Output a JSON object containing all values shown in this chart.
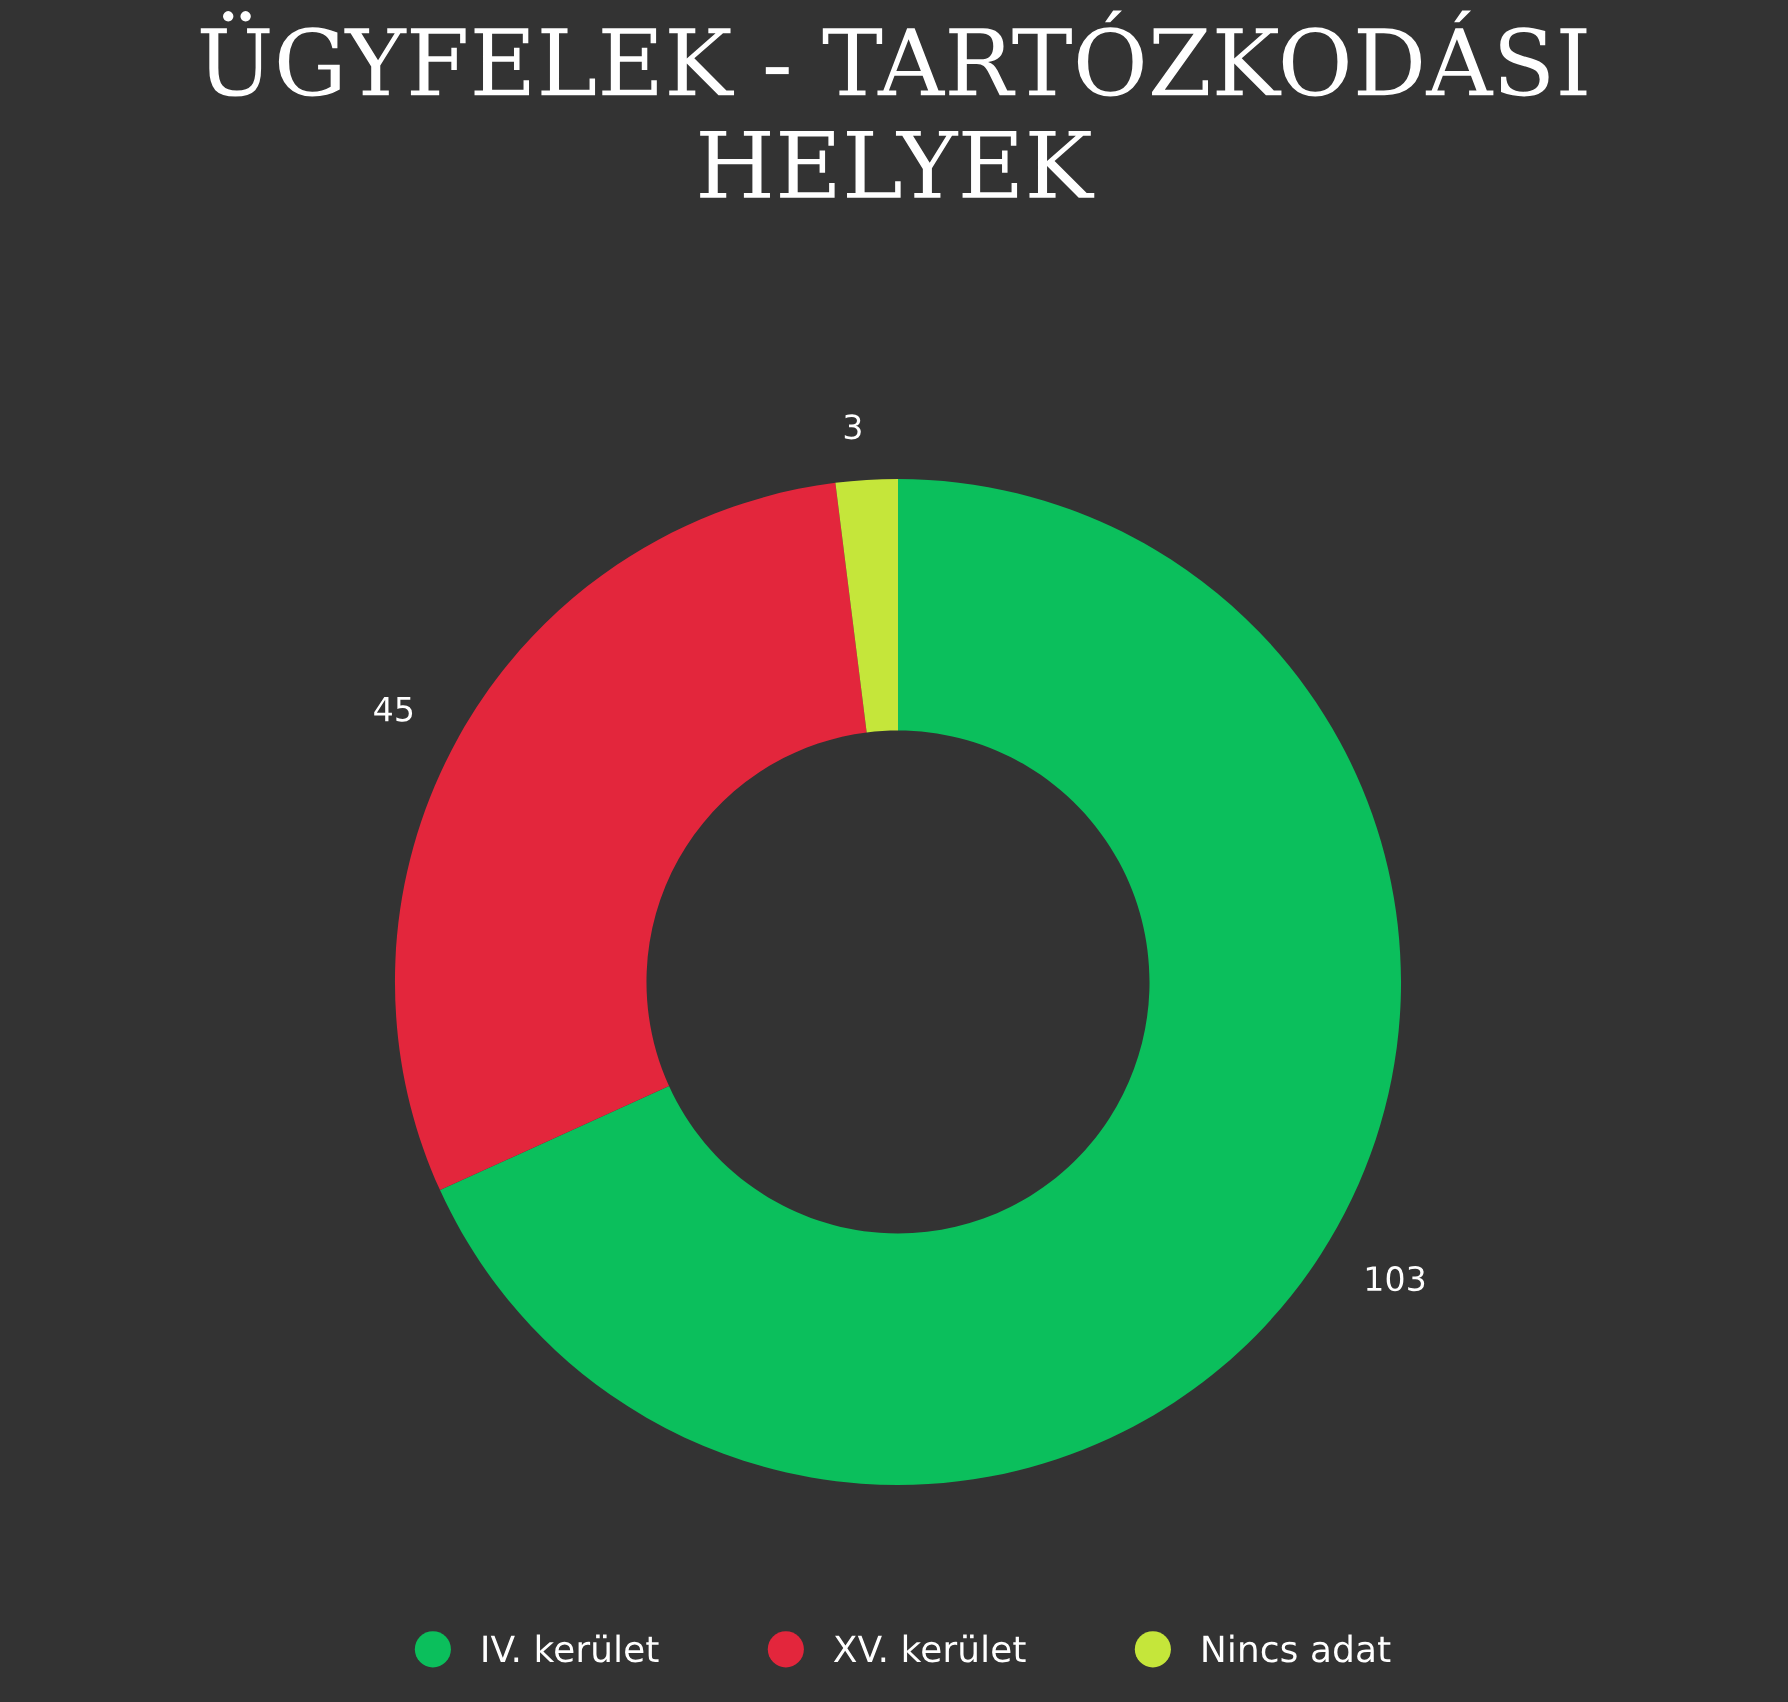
{
  "chart_data": {
    "type": "donut",
    "title": "ÜGYFELEK - TARTÓZKODÁSI HELYEK",
    "categories": [
      "IV. kerület",
      "XV. kerület",
      "Nincs adat"
    ],
    "values": [
      103,
      45,
      3
    ],
    "colors": [
      "#0bbf5c",
      "#e3263c",
      "#c5e63a"
    ],
    "data_labels": true,
    "legend": "bottom"
  }
}
